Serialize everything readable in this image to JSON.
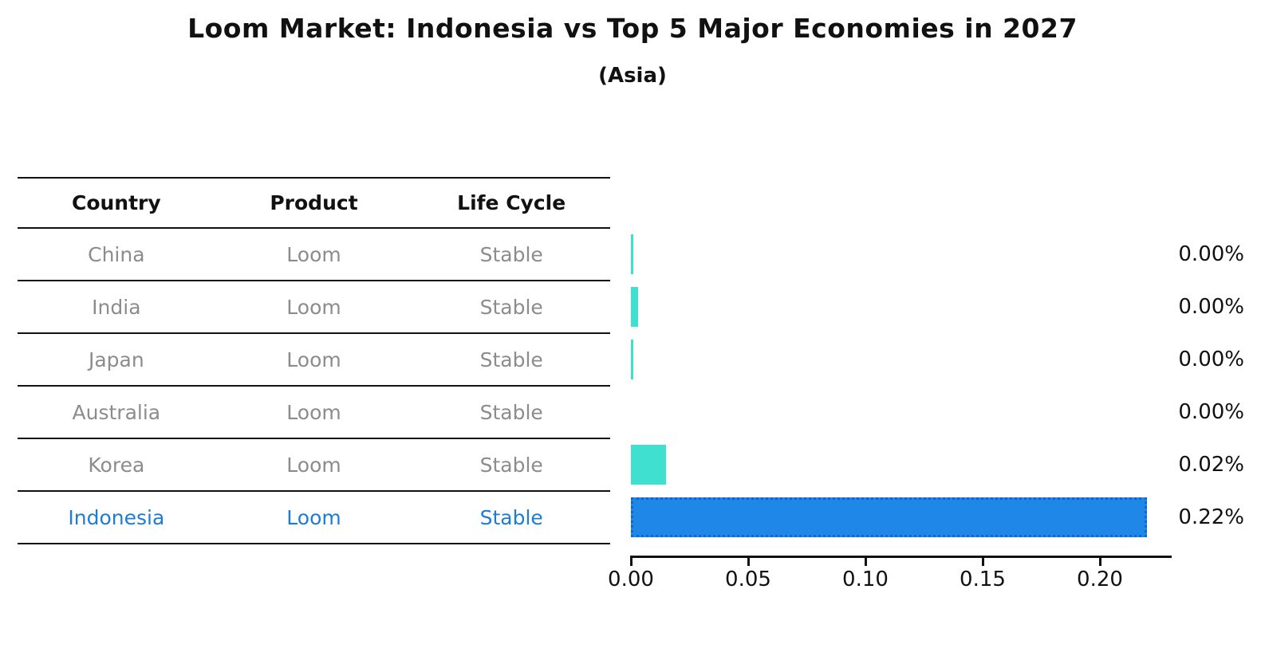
{
  "title": "Loom Market: Indonesia vs Top 5 Major Economies in 2027",
  "subtitle": "(Asia)",
  "table": {
    "columns": [
      "Country",
      "Product",
      "Life Cycle"
    ],
    "rows": [
      {
        "country": "China",
        "product": "Loom",
        "life_cycle": "Stable",
        "highlight": false
      },
      {
        "country": "India",
        "product": "Loom",
        "life_cycle": "Stable",
        "highlight": false
      },
      {
        "country": "Japan",
        "product": "Loom",
        "life_cycle": "Stable",
        "highlight": false
      },
      {
        "country": "Australia",
        "product": "Loom",
        "life_cycle": "Stable",
        "highlight": false
      },
      {
        "country": "Korea",
        "product": "Loom",
        "life_cycle": "Stable",
        "highlight": false
      },
      {
        "country": "Indonesia",
        "product": "Loom",
        "life_cycle": "Stable",
        "highlight": true
      }
    ]
  },
  "chart_data": {
    "type": "bar",
    "orientation": "horizontal",
    "title": "Loom Market: Indonesia vs Top 5 Major Economies in 2027",
    "subtitle": "(Asia)",
    "categories": [
      "China",
      "India",
      "Japan",
      "Australia",
      "Korea",
      "Indonesia"
    ],
    "values": [
      0.001,
      0.003,
      0.001,
      0.0,
      0.015,
      0.22
    ],
    "value_labels": [
      "0.00%",
      "0.00%",
      "0.00%",
      "0.00%",
      "0.02%",
      "0.22%"
    ],
    "highlight_index": 5,
    "xticks": [
      0.0,
      0.05,
      0.1,
      0.15,
      0.2
    ],
    "xtick_labels": [
      "0.00",
      "0.05",
      "0.10",
      "0.15",
      "0.20"
    ],
    "xlim": [
      0.0,
      0.231
    ],
    "grid": false,
    "legend": false,
    "bar_color": "#40E0D0",
    "highlight_bar_color": "#1E87E8",
    "highlight_edge_color": "#1266CC"
  },
  "colors": {
    "background": "#ffffff",
    "table_text_gray": "#8c8c8c",
    "highlight_text_blue": "#1c7cd6",
    "axis_black": "#111111"
  }
}
